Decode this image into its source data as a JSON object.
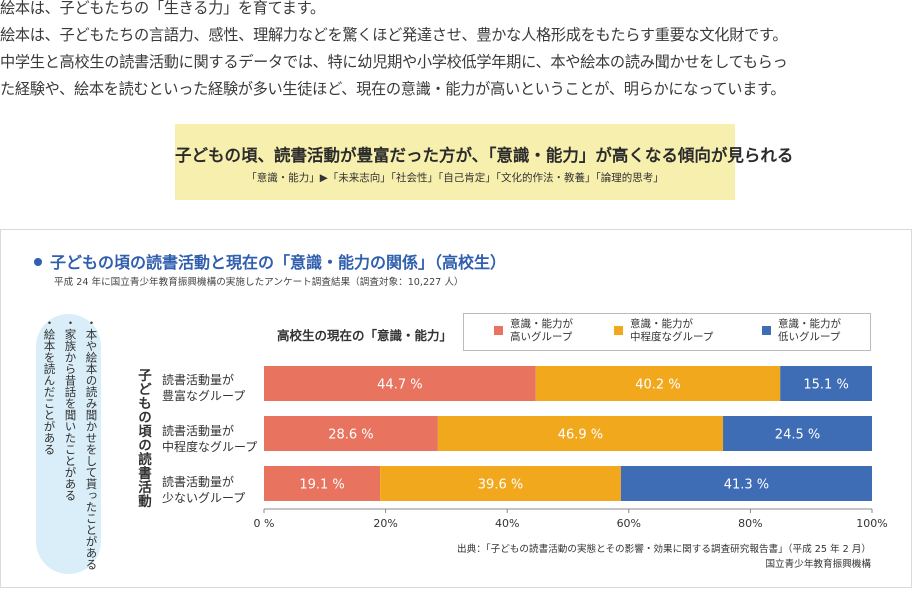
{
  "intro": {
    "line1": "絵本は、子どもたちの「生きる力」を育てます。",
    "line2": "絵本は、子どもたちの言語力、感性、理解力などを驚くほど発達させ、豊かな人格形成をもたらす重要な文化財です。",
    "line3": "中学生と高校生の読書活動に関するデータでは、特に幼児期や小学校低学年期に、本や絵本の読み聞かせをしてもらっ",
    "line4": "た経験や、絵本を読むといった経験が多い生徒ほど、現在の意識・能力が高いということが、明らかになっています。"
  },
  "highlight": {
    "title": "子どもの頃、読書活動が豊富だった方が、「意識・能力」が高くなる傾向が見られる",
    "subtitle": "「意識・能力」▶「未来志向」「社会性」「自己肯定」「文化的作法・教養」「論理的思考」"
  },
  "panel": {
    "title": "子どもの頃の読書活動と現在の「意識・能力の関係」（高校生）",
    "subtitle": "平成 24 年に国立青少年教育振興機構の実施したアンケート調査結果（調査対象：10,227 人）",
    "bubble_lines": [
      "・本や絵本の読み聞かせをして貰ったことがある",
      "・家族から昔話を聞いたことがある",
      "・絵本を読んだことがある"
    ],
    "side_label": "子どもの頃の読書活動",
    "chart_subtitle": "高校生の現在の「意識・能力」",
    "source_line1": "出典：「子どもの読書活動の実態とその影響・効果に関する調査研究報告書」（平成 25 年 2 月）",
    "source_line2": "国立青少年教育振興機構"
  },
  "chart_data": {
    "type": "bar",
    "orientation": "horizontal",
    "stacked": true,
    "categories": [
      "読書活動量が豊富なグループ",
      "読書活動量が中程度なグループ",
      "読書活動量が少ないグループ"
    ],
    "category_lines": [
      [
        "読書活動量が",
        "豊富なグループ"
      ],
      [
        "読書活動量が",
        "中程度なグループ"
      ],
      [
        "読書活動量が",
        "少ないグループ"
      ]
    ],
    "series": [
      {
        "name": "意識・能力が高いグループ",
        "name_lines": [
          "意識・能力が",
          "高いグループ"
        ],
        "color": "#e8745f",
        "values": [
          44.7,
          28.6,
          19.1
        ]
      },
      {
        "name": "意識・能力が中程度なグループ",
        "name_lines": [
          "意識・能力が",
          "中程度なグループ"
        ],
        "color": "#f2a81d",
        "values": [
          40.2,
          46.9,
          39.6
        ]
      },
      {
        "name": "意識・能力が低いグループ",
        "name_lines": [
          "意識・能力が",
          "低いグループ"
        ],
        "color": "#3e6cb5",
        "values": [
          15.1,
          24.5,
          41.3
        ]
      }
    ],
    "value_suffix": " %",
    "xlim": [
      0,
      100
    ],
    "xticks": [
      "0 %",
      "20%",
      "40%",
      "60%",
      "80%",
      "100%"
    ],
    "legend_position": "top-right",
    "grid": false
  }
}
